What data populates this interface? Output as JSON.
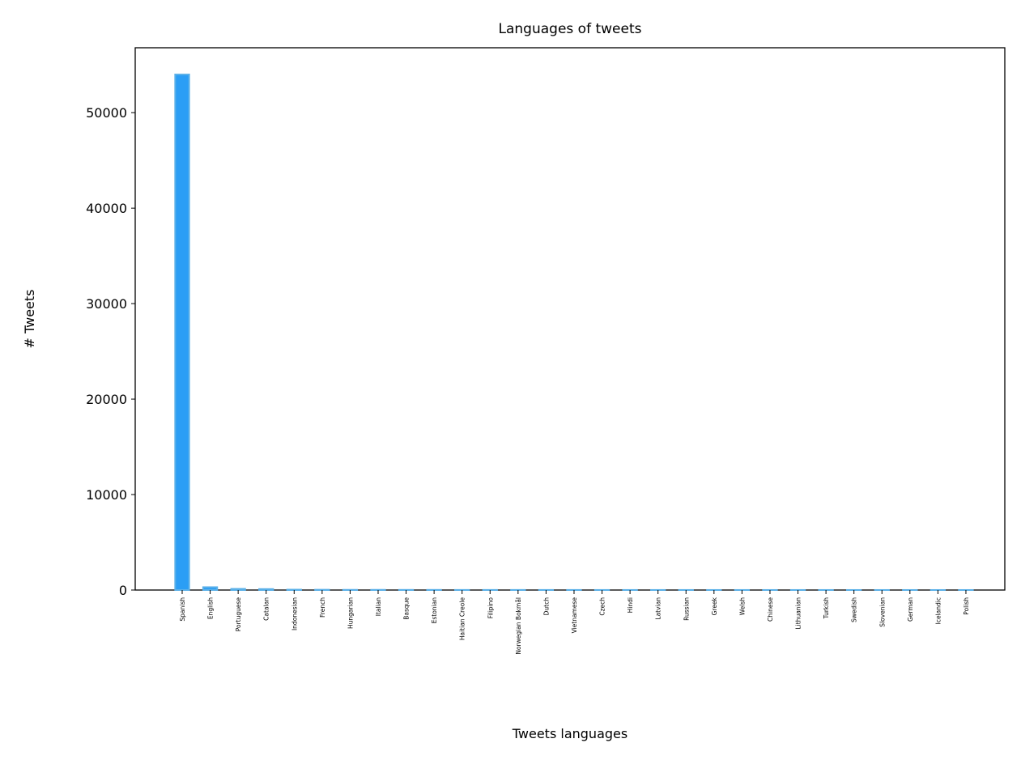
{
  "chart_data": {
    "type": "bar",
    "title": "Languages of tweets",
    "xlabel": "Tweets languages",
    "ylabel": "# Tweets",
    "categories": [
      "Spanish",
      "English",
      "Portuguese",
      "Catalan",
      "Indonesian",
      "French",
      "Hungarian",
      "Italian",
      "Basque",
      "Estonian",
      "Haitian Creole",
      "Filipino",
      "Norwegian Bokmål",
      "Dutch",
      "Vietnamese",
      "Czech",
      "Hindi",
      "Latvian",
      "Russian",
      "Greek",
      "Welsh",
      "Chinese",
      "Lithuanian",
      "Turkish",
      "Swedish",
      "Slovenian",
      "German",
      "Icelandic",
      "Polish"
    ],
    "values": [
      54000,
      300,
      120,
      100,
      40,
      30,
      20,
      20,
      15,
      15,
      10,
      10,
      10,
      8,
      8,
      6,
      5,
      5,
      5,
      4,
      4,
      3,
      3,
      3,
      2,
      2,
      2,
      1,
      1
    ],
    "ylim": [
      0,
      56800
    ],
    "yticks": [
      0,
      10000,
      20000,
      30000,
      40000,
      50000
    ],
    "grid": false,
    "legend": "none",
    "bar_color": "#2b9ef5",
    "bar_edge_color": "#5ab0e8"
  }
}
